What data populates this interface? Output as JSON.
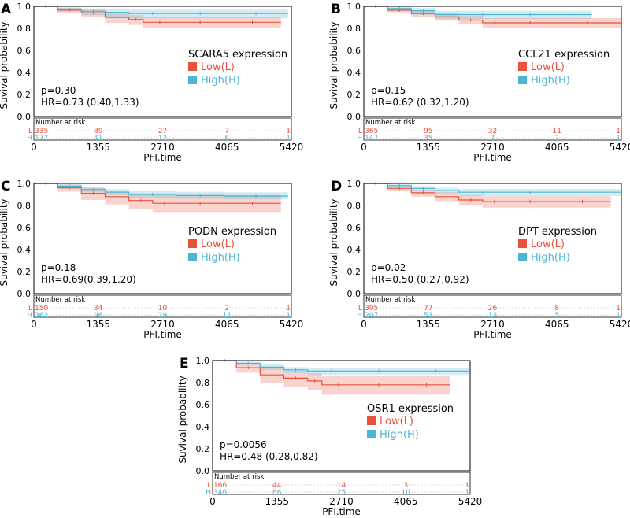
{
  "chart_data": [
    {
      "type": "line",
      "panel": "A",
      "gene_label": "SCARA5 expression",
      "xlabel": "PFI.time",
      "ylabel": "Suvival probability",
      "xticks": [
        0,
        1355,
        2710,
        4065,
        5420
      ],
      "yticks": [
        "0.0",
        "0.2",
        "0.4",
        "0.6",
        "0.8",
        "1.0"
      ],
      "xlim": [
        0,
        5420
      ],
      "ylim": [
        0,
        1
      ],
      "stats": {
        "p": "p=0.30",
        "hr": "HR=0.73 (0.40,1.33)"
      },
      "series": [
        {
          "name": "Low(L)",
          "color": "#e8523a",
          "x": [
            0,
            500,
            1000,
            1500,
            2000,
            2300,
            3000,
            4000,
            5200
          ],
          "y": [
            1.0,
            0.965,
            0.94,
            0.9,
            0.88,
            0.855,
            0.855,
            0.855,
            0.855
          ],
          "ci_low": [
            1.0,
            0.94,
            0.9,
            0.85,
            0.83,
            0.8,
            0.8,
            0.8,
            0.8
          ],
          "ci_high": [
            1.0,
            0.985,
            0.97,
            0.94,
            0.92,
            0.9,
            0.9,
            0.9,
            0.9
          ]
        },
        {
          "name": "High(H)",
          "color": "#4eb4d4",
          "x": [
            0,
            500,
            1000,
            1500,
            2000,
            3000,
            4000,
            5350
          ],
          "y": [
            1.0,
            0.975,
            0.955,
            0.945,
            0.935,
            0.935,
            0.935,
            0.935
          ],
          "ci_low": [
            1.0,
            0.955,
            0.92,
            0.905,
            0.89,
            0.89,
            0.89,
            0.89
          ],
          "ci_high": [
            1.0,
            0.99,
            0.98,
            0.975,
            0.97,
            0.97,
            0.97,
            0.97
          ]
        }
      ],
      "risk": {
        "title": "Number at risk",
        "L_label": "L",
        "H_label": "H",
        "L": [
          "335",
          "89",
          "27",
          "7",
          "1"
        ],
        "H": [
          "177",
          "41",
          "12",
          "6",
          "1"
        ]
      }
    },
    {
      "type": "line",
      "panel": "B",
      "gene_label": "CCL21 expression",
      "xlabel": "PFI.time",
      "ylabel": "Suvival probability",
      "xticks": [
        0,
        1355,
        2710,
        4065,
        5420
      ],
      "yticks": [
        "0.0",
        "0.2",
        "0.4",
        "0.6",
        "0.8",
        "1.0"
      ],
      "xlim": [
        0,
        5420
      ],
      "ylim": [
        0,
        1
      ],
      "stats": {
        "p": "p=0.15",
        "hr": "HR=0.62 (0.32,1.20)"
      },
      "series": [
        {
          "name": "Low(L)",
          "color": "#e8523a",
          "x": [
            0,
            500,
            1000,
            1500,
            2000,
            2500,
            3000,
            4000,
            5420
          ],
          "y": [
            1.0,
            0.965,
            0.935,
            0.905,
            0.875,
            0.85,
            0.85,
            0.85,
            0.85
          ],
          "ci_low": [
            1.0,
            0.945,
            0.905,
            0.87,
            0.835,
            0.8,
            0.8,
            0.8,
            0.8
          ],
          "ci_high": [
            1.0,
            0.985,
            0.96,
            0.935,
            0.915,
            0.895,
            0.895,
            0.895,
            0.895
          ]
        },
        {
          "name": "High(H)",
          "color": "#4eb4d4",
          "x": [
            0,
            500,
            1000,
            1500,
            2000,
            3000,
            4000,
            4800
          ],
          "y": [
            1.0,
            0.98,
            0.96,
            0.925,
            0.925,
            0.925,
            0.925,
            0.925
          ],
          "ci_low": [
            1.0,
            0.955,
            0.925,
            0.885,
            0.885,
            0.885,
            0.885,
            0.885
          ],
          "ci_high": [
            1.0,
            0.995,
            0.985,
            0.96,
            0.96,
            0.96,
            0.96,
            0.96
          ]
        }
      ],
      "risk": {
        "title": "Number at risk",
        "L_label": "L",
        "H_label": "H",
        "L": [
          "365",
          "95",
          "32",
          "11",
          "1"
        ],
        "H": [
          "147",
          "35",
          "7",
          "2",
          "1"
        ]
      }
    },
    {
      "type": "line",
      "panel": "C",
      "gene_label": "PODN expression",
      "xlabel": "PFI.time",
      "ylabel": "Suvival probability",
      "xticks": [
        0,
        1355,
        2710,
        4065,
        5420
      ],
      "yticks": [
        "0.0",
        "0.2",
        "0.4",
        "0.6",
        "0.8",
        "1.0"
      ],
      "xlim": [
        0,
        5420
      ],
      "ylim": [
        0,
        1
      ],
      "stats": {
        "p": "p=0.18",
        "hr": "HR=0.69(0.39,1.20)"
      },
      "series": [
        {
          "name": "Low(L)",
          "color": "#e8523a",
          "x": [
            0,
            500,
            1000,
            1500,
            2000,
            2500,
            3000,
            4000,
            5200
          ],
          "y": [
            1.0,
            0.96,
            0.91,
            0.88,
            0.845,
            0.82,
            0.82,
            0.82,
            0.82
          ],
          "ci_low": [
            1.0,
            0.925,
            0.85,
            0.81,
            0.77,
            0.74,
            0.74,
            0.74,
            0.74
          ],
          "ci_high": [
            1.0,
            0.99,
            0.96,
            0.935,
            0.91,
            0.895,
            0.895,
            0.895,
            0.895
          ]
        },
        {
          "name": "High(H)",
          "color": "#4eb4d4",
          "x": [
            0,
            500,
            1000,
            1500,
            2000,
            3000,
            4000,
            5350
          ],
          "y": [
            1.0,
            0.975,
            0.945,
            0.92,
            0.9,
            0.89,
            0.885,
            0.885
          ],
          "ci_low": [
            1.0,
            0.96,
            0.92,
            0.895,
            0.87,
            0.86,
            0.855,
            0.855
          ],
          "ci_high": [
            1.0,
            0.99,
            0.97,
            0.95,
            0.93,
            0.925,
            0.92,
            0.92
          ]
        }
      ],
      "risk": {
        "title": "Number at risk",
        "L_label": "L",
        "H_label": "H",
        "L": [
          "150",
          "34",
          "10",
          "2",
          "1"
        ],
        "H": [
          "362",
          "96",
          "29",
          "11",
          "1"
        ]
      }
    },
    {
      "type": "line",
      "panel": "D",
      "gene_label": "DPT expression",
      "xlabel": "PFI.time",
      "ylabel": "Suvival probability",
      "xticks": [
        0,
        1355,
        2710,
        4065,
        5420
      ],
      "yticks": [
        "0.0",
        "0.2",
        "0.4",
        "0.6",
        "0.8",
        "1.0"
      ],
      "xlim": [
        0,
        5420
      ],
      "ylim": [
        0,
        1
      ],
      "stats": {
        "p": "p=0.02",
        "hr": "HR=0.50 (0.27,0.92)"
      },
      "series": [
        {
          "name": "Low(L)",
          "color": "#e8523a",
          "x": [
            0,
            500,
            1000,
            1500,
            2000,
            2500,
            3000,
            4000,
            5200
          ],
          "y": [
            1.0,
            0.955,
            0.915,
            0.88,
            0.85,
            0.835,
            0.835,
            0.835,
            0.835
          ],
          "ci_low": [
            1.0,
            0.935,
            0.88,
            0.84,
            0.8,
            0.78,
            0.78,
            0.78,
            0.78
          ],
          "ci_high": [
            1.0,
            0.975,
            0.945,
            0.92,
            0.895,
            0.885,
            0.885,
            0.885,
            0.885
          ]
        },
        {
          "name": "High(H)",
          "color": "#4eb4d4",
          "x": [
            0,
            500,
            1000,
            1500,
            2000,
            3000,
            4000,
            5400
          ],
          "y": [
            1.0,
            0.98,
            0.955,
            0.935,
            0.92,
            0.92,
            0.92,
            0.92
          ],
          "ci_low": [
            1.0,
            0.965,
            0.93,
            0.905,
            0.885,
            0.885,
            0.885,
            0.885
          ],
          "ci_high": [
            1.0,
            0.995,
            0.975,
            0.96,
            0.95,
            0.95,
            0.95,
            0.95
          ]
        }
      ],
      "risk": {
        "title": "Number at risk",
        "L_label": "L",
        "H_label": "H",
        "L": [
          "305",
          "77",
          "26",
          "8",
          "1"
        ],
        "H": [
          "207",
          "53",
          "13",
          "5",
          "1"
        ]
      }
    },
    {
      "type": "line",
      "panel": "E",
      "gene_label": "OSR1 expression",
      "xlabel": "PFI.time",
      "ylabel": "Suvival probability",
      "xticks": [
        0,
        1355,
        2710,
        4065,
        5420
      ],
      "yticks": [
        "0.0",
        "0.2",
        "0.4",
        "0.6",
        "0.8",
        "1.0"
      ],
      "xlim": [
        0,
        5420
      ],
      "ylim": [
        0,
        1
      ],
      "stats": {
        "p": "p=0.0056",
        "hr": "HR=0.48 (0.28,0.82)"
      },
      "series": [
        {
          "name": "Low(L)",
          "color": "#e8523a",
          "x": [
            0,
            500,
            1000,
            1500,
            2000,
            2300,
            3000,
            4000,
            5000
          ],
          "y": [
            1.0,
            0.935,
            0.87,
            0.84,
            0.815,
            0.78,
            0.78,
            0.78,
            0.78
          ],
          "ci_low": [
            1.0,
            0.89,
            0.8,
            0.76,
            0.73,
            0.69,
            0.69,
            0.69,
            0.69
          ],
          "ci_high": [
            1.0,
            0.975,
            0.93,
            0.905,
            0.885,
            0.86,
            0.86,
            0.86,
            0.86
          ]
        },
        {
          "name": "High(H)",
          "color": "#4eb4d4",
          "x": [
            0,
            500,
            1000,
            1500,
            2000,
            3000,
            4000,
            5400
          ],
          "y": [
            1.0,
            0.975,
            0.94,
            0.915,
            0.905,
            0.905,
            0.905,
            0.905
          ],
          "ci_low": [
            1.0,
            0.96,
            0.915,
            0.885,
            0.87,
            0.87,
            0.87,
            0.87
          ],
          "ci_high": [
            1.0,
            0.99,
            0.965,
            0.94,
            0.935,
            0.935,
            0.935,
            0.935
          ]
        }
      ],
      "risk": {
        "title": "Number at risk",
        "L_label": "L",
        "H_label": "H",
        "L": [
          "166",
          "44",
          "14",
          "3",
          "1"
        ],
        "H": [
          "346",
          "86",
          "25",
          "10",
          "1"
        ]
      }
    }
  ]
}
